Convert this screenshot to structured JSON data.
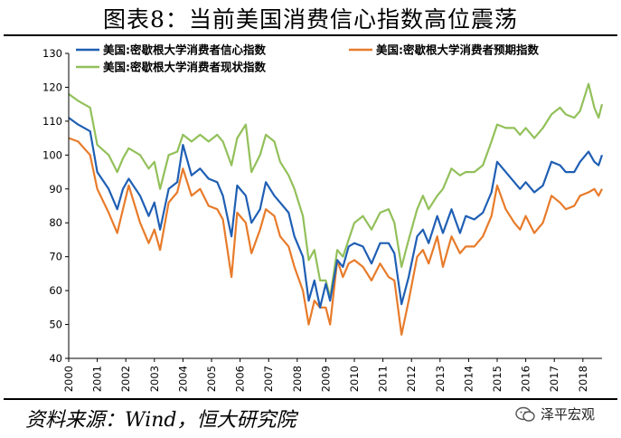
{
  "header": {
    "title": "图表8：当前美国消费信心指数高位震荡"
  },
  "footer": {
    "source": "资料来源：Wind，恒大研究院",
    "watermark": "泽平宏观"
  },
  "chart_data": {
    "type": "line",
    "title": "图表8：当前美国消费信心指数高位震荡",
    "xlabel": "",
    "ylabel": "",
    "ylim": [
      40,
      130
    ],
    "yticks": [
      40,
      50,
      60,
      70,
      80,
      90,
      100,
      110,
      120,
      130
    ],
    "xlim": [
      2000,
      2018.67
    ],
    "xticks": [
      "2000",
      "2001",
      "2002",
      "2003",
      "2004",
      "2005",
      "2006",
      "2007",
      "2008",
      "2009",
      "2010",
      "2011",
      "2012",
      "2013",
      "2014",
      "2015",
      "2016",
      "2017",
      "2018"
    ],
    "grid": false,
    "legend": "top",
    "series": [
      {
        "name": "美国:密歇根大学消费者信心指数",
        "color": "#1f5fb4",
        "points": [
          [
            2000.0,
            111
          ],
          [
            2000.33,
            109
          ],
          [
            2000.75,
            107
          ],
          [
            2001.0,
            95
          ],
          [
            2001.4,
            90
          ],
          [
            2001.7,
            84
          ],
          [
            2001.9,
            90
          ],
          [
            2002.1,
            93
          ],
          [
            2002.5,
            88
          ],
          [
            2002.8,
            82
          ],
          [
            2003.0,
            86
          ],
          [
            2003.2,
            78
          ],
          [
            2003.5,
            90
          ],
          [
            2003.8,
            92
          ],
          [
            2004.0,
            103
          ],
          [
            2004.3,
            94
          ],
          [
            2004.6,
            96
          ],
          [
            2004.9,
            93
          ],
          [
            2005.2,
            92
          ],
          [
            2005.4,
            88
          ],
          [
            2005.7,
            76
          ],
          [
            2005.9,
            91
          ],
          [
            2006.2,
            88
          ],
          [
            2006.4,
            80
          ],
          [
            2006.7,
            84
          ],
          [
            2006.9,
            92
          ],
          [
            2007.2,
            88
          ],
          [
            2007.4,
            86
          ],
          [
            2007.7,
            83
          ],
          [
            2007.9,
            76
          ],
          [
            2008.2,
            70
          ],
          [
            2008.4,
            57
          ],
          [
            2008.6,
            63
          ],
          [
            2008.8,
            55
          ],
          [
            2009.0,
            62
          ],
          [
            2009.15,
            57
          ],
          [
            2009.4,
            69
          ],
          [
            2009.6,
            67
          ],
          [
            2009.8,
            73
          ],
          [
            2010.0,
            74
          ],
          [
            2010.3,
            73
          ],
          [
            2010.6,
            68
          ],
          [
            2010.9,
            74
          ],
          [
            2011.2,
            74
          ],
          [
            2011.4,
            71
          ],
          [
            2011.65,
            56
          ],
          [
            2011.9,
            64
          ],
          [
            2012.2,
            76
          ],
          [
            2012.4,
            78
          ],
          [
            2012.6,
            74
          ],
          [
            2012.9,
            82
          ],
          [
            2013.1,
            77
          ],
          [
            2013.4,
            84
          ],
          [
            2013.7,
            77
          ],
          [
            2013.9,
            82
          ],
          [
            2014.2,
            81
          ],
          [
            2014.5,
            83
          ],
          [
            2014.8,
            89
          ],
          [
            2015.0,
            98
          ],
          [
            2015.3,
            95
          ],
          [
            2015.6,
            92
          ],
          [
            2015.8,
            90
          ],
          [
            2016.0,
            92
          ],
          [
            2016.3,
            89
          ],
          [
            2016.6,
            91
          ],
          [
            2016.9,
            98
          ],
          [
            2017.2,
            97
          ],
          [
            2017.4,
            95
          ],
          [
            2017.7,
            95
          ],
          [
            2017.9,
            98
          ],
          [
            2018.2,
            101
          ],
          [
            2018.4,
            98
          ],
          [
            2018.55,
            97
          ],
          [
            2018.67,
            100
          ]
        ]
      },
      {
        "name": "美国:密歇根大学消费者预期指数",
        "color": "#e87b2a",
        "points": [
          [
            2000.0,
            105
          ],
          [
            2000.33,
            104
          ],
          [
            2000.75,
            100
          ],
          [
            2001.0,
            90
          ],
          [
            2001.4,
            83
          ],
          [
            2001.7,
            77
          ],
          [
            2001.9,
            84
          ],
          [
            2002.1,
            91
          ],
          [
            2002.5,
            80
          ],
          [
            2002.8,
            74
          ],
          [
            2003.0,
            78
          ],
          [
            2003.2,
            72
          ],
          [
            2003.5,
            86
          ],
          [
            2003.8,
            89
          ],
          [
            2004.0,
            96
          ],
          [
            2004.3,
            88
          ],
          [
            2004.6,
            90
          ],
          [
            2004.9,
            85
          ],
          [
            2005.2,
            84
          ],
          [
            2005.4,
            81
          ],
          [
            2005.7,
            64
          ],
          [
            2005.9,
            83
          ],
          [
            2006.2,
            80
          ],
          [
            2006.4,
            71
          ],
          [
            2006.7,
            78
          ],
          [
            2006.9,
            84
          ],
          [
            2007.2,
            82
          ],
          [
            2007.4,
            76
          ],
          [
            2007.7,
            73
          ],
          [
            2007.9,
            67
          ],
          [
            2008.2,
            60
          ],
          [
            2008.4,
            50
          ],
          [
            2008.6,
            57
          ],
          [
            2008.8,
            55
          ],
          [
            2009.0,
            55
          ],
          [
            2009.15,
            50
          ],
          [
            2009.4,
            69
          ],
          [
            2009.6,
            64
          ],
          [
            2009.8,
            68
          ],
          [
            2010.0,
            69
          ],
          [
            2010.3,
            67
          ],
          [
            2010.6,
            63
          ],
          [
            2010.9,
            68
          ],
          [
            2011.2,
            64
          ],
          [
            2011.4,
            63
          ],
          [
            2011.65,
            47
          ],
          [
            2011.9,
            57
          ],
          [
            2012.2,
            70
          ],
          [
            2012.4,
            72
          ],
          [
            2012.6,
            68
          ],
          [
            2012.9,
            76
          ],
          [
            2013.1,
            67
          ],
          [
            2013.4,
            76
          ],
          [
            2013.7,
            71
          ],
          [
            2013.9,
            73
          ],
          [
            2014.2,
            73
          ],
          [
            2014.5,
            76
          ],
          [
            2014.8,
            82
          ],
          [
            2015.0,
            91
          ],
          [
            2015.3,
            84
          ],
          [
            2015.6,
            80
          ],
          [
            2015.8,
            78
          ],
          [
            2016.0,
            82
          ],
          [
            2016.3,
            77
          ],
          [
            2016.6,
            80
          ],
          [
            2016.9,
            88
          ],
          [
            2017.2,
            86
          ],
          [
            2017.4,
            84
          ],
          [
            2017.7,
            85
          ],
          [
            2017.9,
            88
          ],
          [
            2018.2,
            89
          ],
          [
            2018.4,
            90
          ],
          [
            2018.55,
            88
          ],
          [
            2018.67,
            90
          ]
        ]
      },
      {
        "name": "美国:密歇根大学消费者现状指数",
        "color": "#92c05a",
        "points": [
          [
            2000.0,
            118
          ],
          [
            2000.33,
            116
          ],
          [
            2000.75,
            114
          ],
          [
            2001.0,
            103
          ],
          [
            2001.4,
            100
          ],
          [
            2001.7,
            95
          ],
          [
            2001.9,
            99
          ],
          [
            2002.1,
            102
          ],
          [
            2002.5,
            100
          ],
          [
            2002.8,
            96
          ],
          [
            2003.0,
            98
          ],
          [
            2003.2,
            90
          ],
          [
            2003.5,
            100
          ],
          [
            2003.8,
            101
          ],
          [
            2004.0,
            106
          ],
          [
            2004.3,
            104
          ],
          [
            2004.6,
            106
          ],
          [
            2004.9,
            104
          ],
          [
            2005.2,
            106
          ],
          [
            2005.4,
            104
          ],
          [
            2005.7,
            97
          ],
          [
            2005.9,
            105
          ],
          [
            2006.2,
            109
          ],
          [
            2006.4,
            95
          ],
          [
            2006.7,
            100
          ],
          [
            2006.9,
            106
          ],
          [
            2007.2,
            104
          ],
          [
            2007.4,
            98
          ],
          [
            2007.7,
            94
          ],
          [
            2007.9,
            90
          ],
          [
            2008.2,
            82
          ],
          [
            2008.4,
            69
          ],
          [
            2008.6,
            72
          ],
          [
            2008.8,
            63
          ],
          [
            2009.0,
            63
          ],
          [
            2009.15,
            58
          ],
          [
            2009.4,
            72
          ],
          [
            2009.6,
            70
          ],
          [
            2009.8,
            75
          ],
          [
            2010.0,
            80
          ],
          [
            2010.3,
            82
          ],
          [
            2010.6,
            78
          ],
          [
            2010.9,
            83
          ],
          [
            2011.2,
            84
          ],
          [
            2011.4,
            80
          ],
          [
            2011.65,
            67
          ],
          [
            2011.9,
            75
          ],
          [
            2012.2,
            84
          ],
          [
            2012.4,
            88
          ],
          [
            2012.6,
            84
          ],
          [
            2012.9,
            88
          ],
          [
            2013.1,
            90
          ],
          [
            2013.4,
            96
          ],
          [
            2013.7,
            94
          ],
          [
            2013.9,
            95
          ],
          [
            2014.2,
            95
          ],
          [
            2014.5,
            97
          ],
          [
            2014.8,
            104
          ],
          [
            2015.0,
            109
          ],
          [
            2015.3,
            108
          ],
          [
            2015.6,
            108
          ],
          [
            2015.8,
            106
          ],
          [
            2016.0,
            108
          ],
          [
            2016.3,
            105
          ],
          [
            2016.6,
            108
          ],
          [
            2016.9,
            112
          ],
          [
            2017.2,
            114
          ],
          [
            2017.4,
            112
          ],
          [
            2017.7,
            111
          ],
          [
            2017.9,
            113
          ],
          [
            2018.2,
            121
          ],
          [
            2018.4,
            114
          ],
          [
            2018.55,
            111
          ],
          [
            2018.67,
            115
          ]
        ]
      }
    ]
  }
}
